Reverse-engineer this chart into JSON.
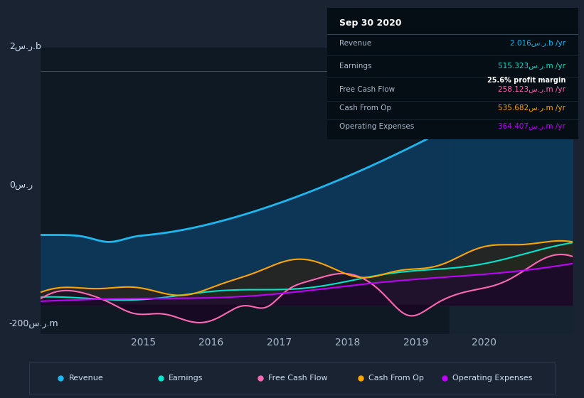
{
  "bg_color": "#1a2332",
  "plot_bg_color": "#0f1923",
  "title_date": "Sep 30 2020",
  "info_box": {
    "Revenue": {
      "value": "2.016س.ر.b /yr",
      "color": "#00bfff"
    },
    "Earnings": {
      "value": "515.323س.ر.m /yr",
      "color": "#00e5cc"
    },
    "profit_margin": "25.6% profit margin",
    "Free Cash Flow": {
      "value": "258.123س.ر.m /yr",
      "color": "#ff69b4"
    },
    "Cash From Op": {
      "value": "535.682س.ر.m /yr",
      "color": "#ffa500"
    },
    "Operating Expenses": {
      "value": "364.407س.ر.m /yr",
      "color": "#bf00ff"
    }
  },
  "ylabel_top": "2س.ر.b",
  "ylabel_zero": "0س.ر",
  "ylabel_bottom": "-200س.ر.m",
  "x_ticks": [
    "2015",
    "2016",
    "2017",
    "2018",
    "2019",
    "2020"
  ],
  "legend": [
    {
      "label": "Revenue",
      "color": "#1eb8f0"
    },
    {
      "label": "Earnings",
      "color": "#00e5cc"
    },
    {
      "label": "Free Cash Flow",
      "color": "#ff69b4"
    },
    {
      "label": "Cash From Op",
      "color": "#ffa500"
    },
    {
      "label": "Operating Expenses",
      "color": "#bf00ff"
    }
  ]
}
